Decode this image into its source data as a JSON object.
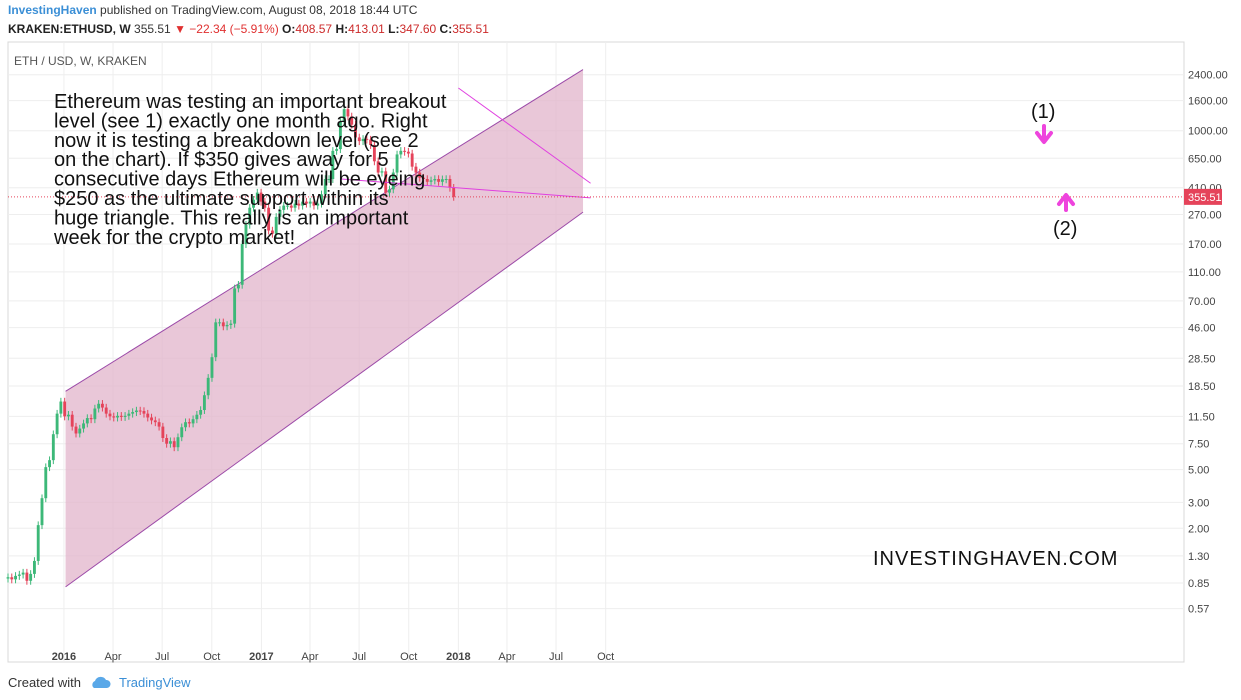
{
  "header": {
    "author": "InvestingHaven",
    "published": "published on TradingView.com, August 08, 2018 18:44 UTC",
    "symbol": "KRAKEN:ETHUSD, W",
    "last": "355.51",
    "change": "−22.34 (−5.91%)",
    "o_label": "O:",
    "o": "408.57",
    "h_label": "H:",
    "h": "413.01",
    "l_label": "L:",
    "l": "347.60",
    "c_label": "C:",
    "c": "355.51"
  },
  "footer": {
    "created_with": "Created with",
    "brand": "TradingView"
  },
  "colors": {
    "up": "#3cb878",
    "down": "#e5435a",
    "channel_fill": "#e2b4cb",
    "channel_line": "#9c4aa8",
    "trend": "#e040e0",
    "arrow": "#ee44dd",
    "price_line": "#e5435a"
  },
  "chart_data": {
    "type": "candlestick",
    "pane_label": "ETH / USD, W, KRAKEN",
    "y_scale": "log",
    "y_ticks": [
      "2400.00",
      "1600.00",
      "1000.00",
      "650.00",
      "410.00",
      "270.00",
      "170.00",
      "110.00",
      "70.00",
      "46.00",
      "28.50",
      "18.50",
      "11.50",
      "7.50",
      "5.00",
      "3.00",
      "2.00",
      "1.30",
      "0.85",
      "0.57"
    ],
    "x_ticks": [
      "2016",
      "Apr",
      "Jul",
      "Oct",
      "2017",
      "Apr",
      "Jul",
      "Oct",
      "2018",
      "Apr",
      "Jul",
      "Oct"
    ],
    "current_price_label": "355.51",
    "annotation": "Ethereum was testing an important breakout level (see 1) exactly one month ago. Right now it is testing a breakdown level (see 2 on the chart). If $350 gives away for 5 consecutive days Ethereum will be eyeing $250 as the ultimate support within its huge triangle. This really is an important week for the crypto market!",
    "watermark": "INVESTINGHAVEN.COM",
    "marker1": "(1)",
    "marker2": "(2)",
    "closes": [
      0.93,
      0.9,
      0.95,
      0.97,
      1.0,
      0.88,
      0.98,
      1.2,
      2.1,
      3.2,
      5.2,
      5.8,
      8.7,
      12.0,
      14.5,
      11.5,
      11.8,
      9.8,
      8.8,
      9.5,
      10.3,
      11.2,
      11.0,
      13.0,
      14.0,
      13.2,
      12.0,
      11.5,
      11.3,
      11.6,
      11.4,
      11.6,
      12.0,
      12.3,
      12.6,
      12.5,
      12.0,
      11.3,
      10.8,
      10.5,
      9.8,
      8.2,
      7.5,
      7.8,
      7.1,
      8.3,
      9.7,
      10.5,
      10.3,
      11.0,
      11.8,
      12.7,
      16.0,
      21.0,
      29.0,
      50.0,
      50.0,
      47.0,
      48.0,
      49.0,
      85.0,
      90.0,
      170.0,
      230.0,
      300.0,
      340.0,
      380.0,
      330.0,
      300.0,
      210.0,
      200.0,
      260.0,
      290.0,
      310.0,
      310.0,
      300.0,
      320.0,
      310.0,
      330.0,
      320.0,
      330.0,
      310.0,
      320.0,
      370.0,
      470.0,
      470.0,
      730.0,
      750.0,
      1150.0,
      1400.0,
      1250.0,
      1100.0,
      900.0,
      850.0,
      880.0,
      870.0,
      800.0,
      620.0,
      520.0,
      530.0,
      380.0,
      400.0,
      520.0,
      690.0,
      730.0,
      720.0,
      700.0,
      570.0,
      520.0,
      480.0,
      470.0,
      450.0,
      460.0,
      470.0,
      450.0,
      468.0,
      470.0,
      410.0,
      356.0
    ],
    "channel": {
      "upper": [
        [
          "2016-01-04",
          17.0
        ],
        [
          "2018-08-20",
          2600.0
        ]
      ],
      "lower": [
        [
          "2016-01-04",
          0.8
        ],
        [
          "2018-08-20",
          280.0
        ]
      ]
    },
    "trend_lines": [
      [
        [
          "2017-05-29",
          470.0
        ],
        [
          "2018-09-03",
          350.0
        ]
      ],
      [
        [
          "2018-01-01",
          1950.0
        ],
        [
          "2018-09-03",
          440.0
        ]
      ]
    ],
    "last_close": 355.51
  }
}
